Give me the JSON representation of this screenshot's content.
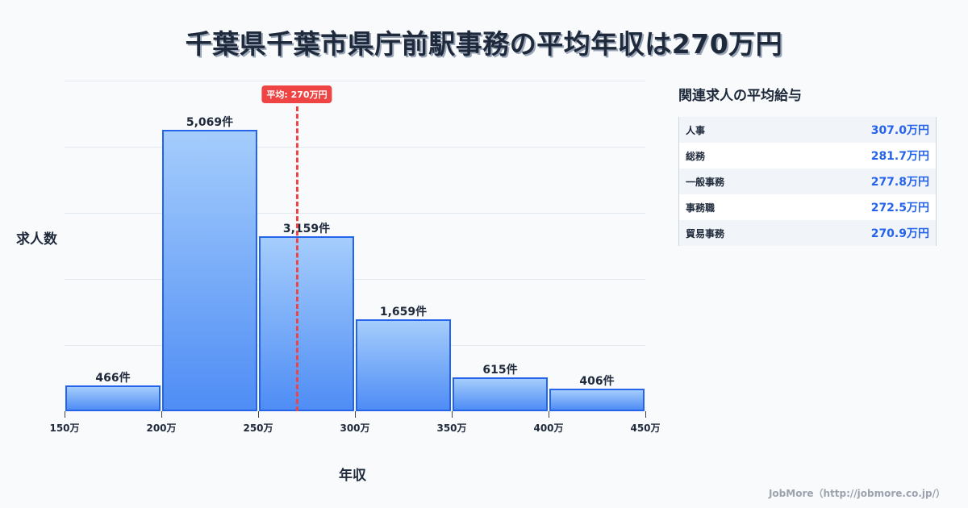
{
  "title": "千葉県千葉市県庁前駅事務の平均年収は270万円",
  "axis": {
    "ylabel": "求人数",
    "xlabel": "年収"
  },
  "average": {
    "label": "平均: 270万円",
    "value": 270,
    "color": "#ef4444"
  },
  "colors": {
    "bar_border": "#2563eb",
    "bar_top": "#a5cdfc",
    "bar_bottom": "#4f8df5",
    "value_text": "#2563eb"
  },
  "bar_labels": [
    "466件",
    "5,069件",
    "3,159件",
    "1,659件",
    "615件",
    "406件"
  ],
  "x_ticks": [
    "150万",
    "200万",
    "250万",
    "300万",
    "350万",
    "400万",
    "450万"
  ],
  "sidebar": {
    "title": "関連求人の平均給与",
    "rows": [
      {
        "name": "人事",
        "value": "307.0万円"
      },
      {
        "name": "総務",
        "value": "281.7万円"
      },
      {
        "name": "一般事務",
        "value": "277.8万円"
      },
      {
        "name": "事務職",
        "value": "272.5万円"
      },
      {
        "name": "貿易事務",
        "value": "270.9万円"
      }
    ]
  },
  "footer": "JobMore（http://jobmore.co.jp/）",
  "chart_data": {
    "type": "bar",
    "title": "千葉県千葉市県庁前駅事務の平均年収は270万円",
    "xlabel": "年収",
    "ylabel": "求人数",
    "categories": [
      "150-200万",
      "200-250万",
      "250-300万",
      "300-350万",
      "350-400万",
      "400-450万"
    ],
    "bin_edges": [
      150,
      200,
      250,
      300,
      350,
      400,
      450
    ],
    "values": [
      466,
      5069,
      3159,
      1659,
      615,
      406
    ],
    "ylim": [
      0,
      5960
    ],
    "grid": true,
    "annotations": [
      {
        "type": "vline",
        "x": 270,
        "label": "平均: 270万円"
      }
    ],
    "side_table": [
      {
        "job": "人事",
        "avg_salary_man_yen": 307.0
      },
      {
        "job": "総務",
        "avg_salary_man_yen": 281.7
      },
      {
        "job": "一般事務",
        "avg_salary_man_yen": 277.8
      },
      {
        "job": "事務職",
        "avg_salary_man_yen": 272.5
      },
      {
        "job": "貿易事務",
        "avg_salary_man_yen": 270.9
      }
    ]
  }
}
